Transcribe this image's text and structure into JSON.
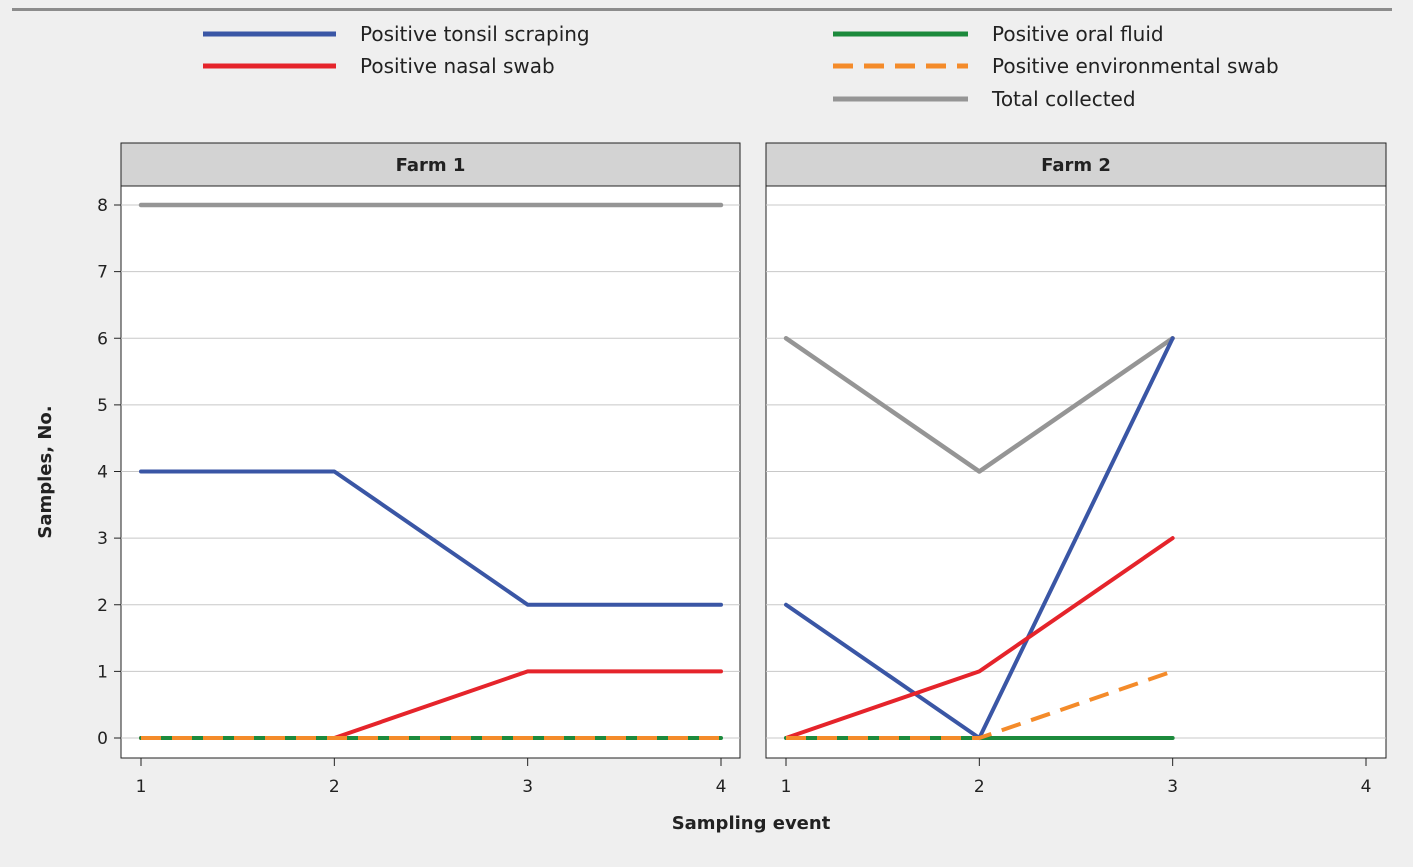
{
  "chart_data": {
    "type": "line",
    "xlabel": "Sampling event",
    "ylabel": "Samples, No.",
    "xlim": [
      1,
      4
    ],
    "ylim": [
      0,
      8
    ],
    "x_ticks": [
      1,
      2,
      3,
      4
    ],
    "y_ticks": [
      0,
      1,
      2,
      3,
      4,
      5,
      6,
      7,
      8
    ],
    "grid": "horizontal",
    "legend_position": "top",
    "legend": [
      {
        "key": "tonsil",
        "label": "Positive tonsil scraping",
        "color": "#3a56a5",
        "dashed": false
      },
      {
        "key": "nasal",
        "label": "Positive nasal swab",
        "color": "#e5242b",
        "dashed": false
      },
      {
        "key": "oral",
        "label": "Positive oral fluid",
        "color": "#1c8a3c",
        "dashed": false
      },
      {
        "key": "env",
        "label": "Positive environmental swab",
        "color": "#f48b2a",
        "dashed": true
      },
      {
        "key": "total",
        "label": "Total collected",
        "color": "#959595",
        "dashed": false
      }
    ],
    "facets": [
      {
        "title": "Farm 1",
        "series": [
          {
            "key": "total",
            "x": [
              1,
              2,
              3,
              4
            ],
            "y": [
              8,
              8,
              8,
              8
            ]
          },
          {
            "key": "tonsil",
            "x": [
              1,
              2,
              3,
              4
            ],
            "y": [
              4,
              4,
              2,
              2
            ]
          },
          {
            "key": "nasal",
            "x": [
              1,
              2,
              3,
              4
            ],
            "y": [
              0,
              0,
              1,
              1
            ]
          },
          {
            "key": "oral",
            "x": [
              1,
              2,
              3,
              4
            ],
            "y": [
              0,
              0,
              0,
              0
            ]
          },
          {
            "key": "env",
            "x": [
              1,
              2,
              3,
              4
            ],
            "y": [
              0,
              0,
              0,
              0
            ]
          }
        ]
      },
      {
        "title": "Farm 2",
        "series": [
          {
            "key": "total",
            "x": [
              1,
              2,
              3
            ],
            "y": [
              6,
              4,
              6
            ]
          },
          {
            "key": "tonsil",
            "x": [
              1,
              2,
              3
            ],
            "y": [
              2,
              0,
              6
            ]
          },
          {
            "key": "nasal",
            "x": [
              1,
              2,
              3
            ],
            "y": [
              0,
              1,
              3
            ]
          },
          {
            "key": "oral",
            "x": [
              1,
              2,
              3
            ],
            "y": [
              0,
              0,
              0
            ]
          },
          {
            "key": "env",
            "x": [
              1,
              2,
              3
            ],
            "y": [
              0,
              0,
              1
            ]
          }
        ]
      }
    ]
  }
}
